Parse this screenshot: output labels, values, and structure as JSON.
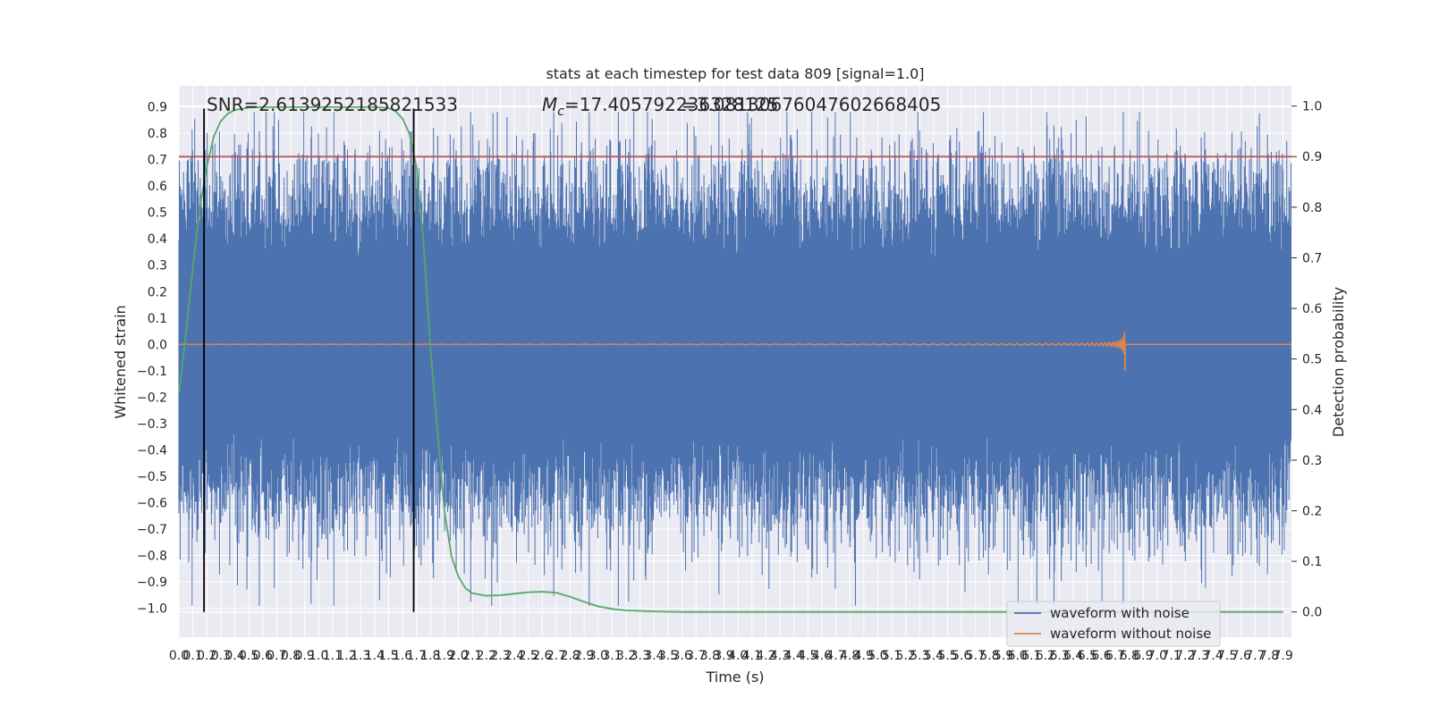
{
  "chart_data": {
    "type": "line",
    "title": "stats at each timestep for test data 809 [signal=1.0]",
    "xlabel": "Time (s)",
    "ylabel_left": "Whitened strain",
    "ylabel_right": "Detection probability",
    "xlim": [
      0.0,
      7.96
    ],
    "ylim_left": [
      -1.11,
      0.98
    ],
    "ylim_right": [
      -0.05,
      1.04
    ],
    "grid": true,
    "x_ticks": [
      "0.0",
      "0.1",
      "0.2",
      "0.3",
      "0.4",
      "0.5",
      "0.6",
      "0.7",
      "0.8",
      "0.9",
      "1.0",
      "1.1",
      "1.2",
      "1.3",
      "1.4",
      "1.5",
      "1.6",
      "1.7",
      "1.8",
      "1.9",
      "2.0",
      "2.1",
      "2.2",
      "2.3",
      "2.4",
      "2.5",
      "2.6",
      "2.7",
      "2.8",
      "2.9",
      "3.0",
      "3.1",
      "3.2",
      "3.3",
      "3.4",
      "3.5",
      "3.6",
      "3.7",
      "3.8",
      "3.9",
      "4.0",
      "4.1",
      "4.2",
      "4.3",
      "4.4",
      "4.5",
      "4.6",
      "4.7",
      "4.8",
      "4.9",
      "5.0",
      "5.1",
      "5.2",
      "5.3",
      "5.4",
      "5.5",
      "5.6",
      "5.7",
      "5.8",
      "5.9",
      "6.0",
      "6.1",
      "6.2",
      "6.3",
      "6.4",
      "6.5",
      "6.6",
      "6.7",
      "6.8",
      "6.9",
      "7.0",
      "7.1",
      "7.2",
      "7.3",
      "7.4",
      "7.5",
      "7.6",
      "7.7",
      "7.8",
      "7.9"
    ],
    "y_ticks_left": [
      "0.9",
      "0.8",
      "0.7",
      "0.6",
      "0.5",
      "0.4",
      "0.3",
      "0.2",
      "0.1",
      "0.0",
      "−0.1",
      "−0.2",
      "−0.3",
      "−0.4",
      "−0.5",
      "−0.6",
      "−0.7",
      "−0.8",
      "−0.9",
      "−1.0"
    ],
    "y_ticks_right": [
      "1.0",
      "0.9",
      "0.8",
      "0.7",
      "0.6",
      "0.5",
      "0.4",
      "0.3",
      "0.2",
      "0.1",
      "0.0"
    ],
    "annotations": {
      "snr": "SNR=2.6139252185821533",
      "mc_symbol": "M",
      "mc_sub": "c",
      "mc_value": "=17.405792236328125",
      "overlap": "=3.08130676047602668405"
    },
    "threshold_probability": 0.9,
    "markers_x": [
      0.18,
      1.68
    ],
    "series": [
      {
        "name": "waveform with noise",
        "color": "#4c72b0",
        "kind": "noise",
        "t_start": 0.0,
        "t_end": 7.96,
        "envelope": 0.3
      },
      {
        "name": "waveform without noise",
        "color": "#dd8452",
        "kind": "chirp",
        "t_start": 0.0,
        "t_end": 6.77,
        "peak_amplitude": 0.1
      },
      {
        "name": "",
        "color": "#55a868",
        "kind": "probability",
        "x": [
          0.0,
          0.05,
          0.1,
          0.15,
          0.2,
          0.25,
          0.3,
          0.35,
          0.4,
          0.5,
          0.6,
          0.8,
          1.0,
          1.2,
          1.4,
          1.5,
          1.55,
          1.6,
          1.65,
          1.7,
          1.75,
          1.8,
          1.85,
          1.9,
          1.95,
          2.0,
          2.05,
          2.1,
          2.2,
          2.3,
          2.4,
          2.5,
          2.6,
          2.7,
          2.8,
          2.9,
          3.0,
          3.1,
          3.2,
          3.3,
          3.4,
          3.6,
          4.0,
          5.0,
          6.0,
          7.0,
          7.9
        ],
        "y": [
          0.43,
          0.55,
          0.68,
          0.8,
          0.88,
          0.94,
          0.97,
          0.985,
          0.992,
          0.997,
          0.998,
          0.998,
          0.998,
          0.998,
          0.998,
          0.996,
          0.99,
          0.975,
          0.945,
          0.88,
          0.73,
          0.52,
          0.36,
          0.2,
          0.11,
          0.07,
          0.047,
          0.037,
          0.032,
          0.033,
          0.036,
          0.039,
          0.04,
          0.038,
          0.03,
          0.02,
          0.011,
          0.006,
          0.003,
          0.002,
          0.001,
          0.0,
          0.0,
          0.0,
          0.0,
          0.0,
          0.0
        ]
      }
    ],
    "colors": {
      "threshold": "#c44e52",
      "markers": "#000000",
      "plot_bg": "#eaeaf2",
      "grid": "#ffffff"
    },
    "legend": {
      "position": "lower-right",
      "entries": [
        "waveform with noise",
        "waveform without noise"
      ]
    }
  }
}
